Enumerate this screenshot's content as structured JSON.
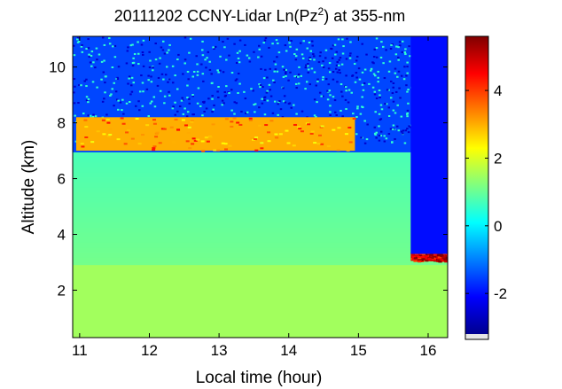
{
  "chart_data": {
    "type": "heatmap",
    "title": {
      "prefix": "20111202 CCNY-Lidar Ln(Pz",
      "superscript": "2",
      "suffix": ") at 355-nm"
    },
    "xlabel": "Local time (hour)",
    "ylabel": "Altitude (km)",
    "xlim": [
      10.9,
      16.28
    ],
    "ylim": [
      0.3,
      11.1
    ],
    "xticks": [
      11,
      12,
      13,
      14,
      15,
      16
    ],
    "yticks": [
      2,
      4,
      6,
      8,
      10
    ],
    "colorbar": {
      "range": [
        -3.2,
        5.6
      ],
      "ticks": [
        -2,
        0,
        2,
        4
      ]
    },
    "features": [
      {
        "name": "cirrus cloud layer",
        "x_range": [
          10.95,
          14.95
        ],
        "altitude_km": [
          7.0,
          8.2
        ],
        "value": 3.0
      },
      {
        "name": "low cloud layer",
        "x_range": [
          15.75,
          16.28
        ],
        "altitude_km": [
          3.05,
          3.35
        ],
        "value": 4.8
      },
      {
        "name": "attenuated region above low cloud",
        "x_range": [
          15.75,
          16.28
        ],
        "altitude_km": [
          3.3,
          11.1
        ],
        "value": -2.0
      },
      {
        "name": "boundary layer",
        "x_range": [
          10.9,
          16.28
        ],
        "altitude_km": [
          0.3,
          2.9
        ],
        "value": 1.5
      }
    ]
  }
}
